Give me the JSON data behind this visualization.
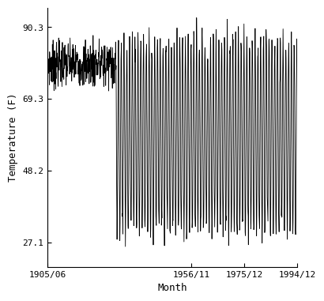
{
  "title": "",
  "xlabel": "Month",
  "ylabel": "Temperature (F)",
  "yticks": [
    27.1,
    48.2,
    69.3,
    90.3
  ],
  "xtick_labels": [
    "1905/06",
    "1956/11",
    "1975/12",
    "1994/12"
  ],
  "ylim": [
    20.0,
    96.0
  ],
  "start_year": 1905,
  "start_month": 6,
  "end_year": 1994,
  "end_month": 12,
  "summer_temp": 87.0,
  "winter_temp": 30.0,
  "early_mean": 79.5,
  "early_std": 3.5,
  "transition_year": 1930,
  "line_color": "#000000",
  "line_width": 0.6,
  "bg_color": "#ffffff",
  "font_size_tick": 8,
  "font_size_label": 9
}
